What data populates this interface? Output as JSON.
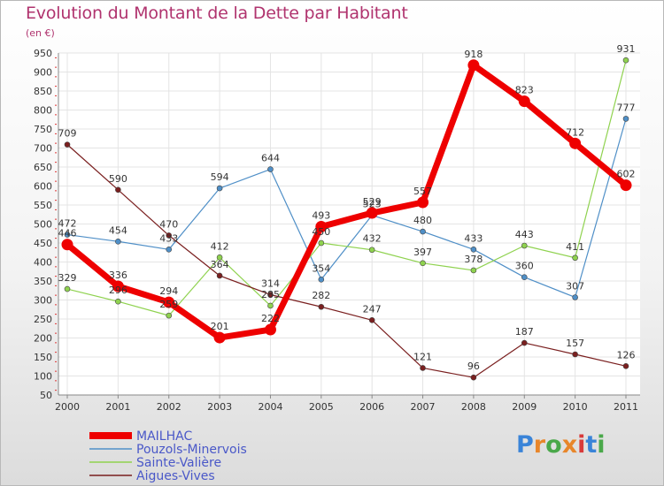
{
  "title": "Evolution du Montant de la Dette par Habitant",
  "subtitle": "(en €)",
  "logo": {
    "text": "Proxiti",
    "colors": [
      "#3a84d8",
      "#e8862a",
      "#4aa84a",
      "#e8862a",
      "#d83a3a",
      "#3a84d8",
      "#4aa84a"
    ]
  },
  "chart_data": {
    "type": "line",
    "title": "Evolution du Montant de la Dette par Habitant",
    "subtitle": "(en €)",
    "x": [
      "2000",
      "2001",
      "2002",
      "2003",
      "2004",
      "2005",
      "2006",
      "2007",
      "2008",
      "2009",
      "2010",
      "2011"
    ],
    "ylim": [
      50,
      950
    ],
    "yticks": [
      50,
      100,
      150,
      200,
      250,
      300,
      350,
      400,
      450,
      500,
      550,
      600,
      650,
      700,
      750,
      800,
      850,
      900,
      950
    ],
    "grid": true,
    "legend_position": "bottom-left",
    "series": [
      {
        "name": "MAILHAC",
        "color": "#ee0000",
        "highlight": true,
        "values": [
          446,
          336,
          294,
          201,
          222,
          493,
          529,
          557,
          918,
          823,
          712,
          602
        ]
      },
      {
        "name": "Pouzols-Minervois",
        "color": "#4f8fc7",
        "values": [
          472,
          454,
          433,
          594,
          644,
          354,
          523,
          480,
          433,
          360,
          307,
          777
        ]
      },
      {
        "name": "Sainte-Valière",
        "color": "#8fd24f",
        "values": [
          329,
          296,
          259,
          412,
          285,
          450,
          432,
          397,
          378,
          443,
          411,
          931
        ]
      },
      {
        "name": "Aigues-Vives",
        "color": "#7a1f1f",
        "values": [
          709,
          590,
          470,
          364,
          314,
          282,
          247,
          121,
          96,
          187,
          157,
          126
        ]
      }
    ]
  }
}
